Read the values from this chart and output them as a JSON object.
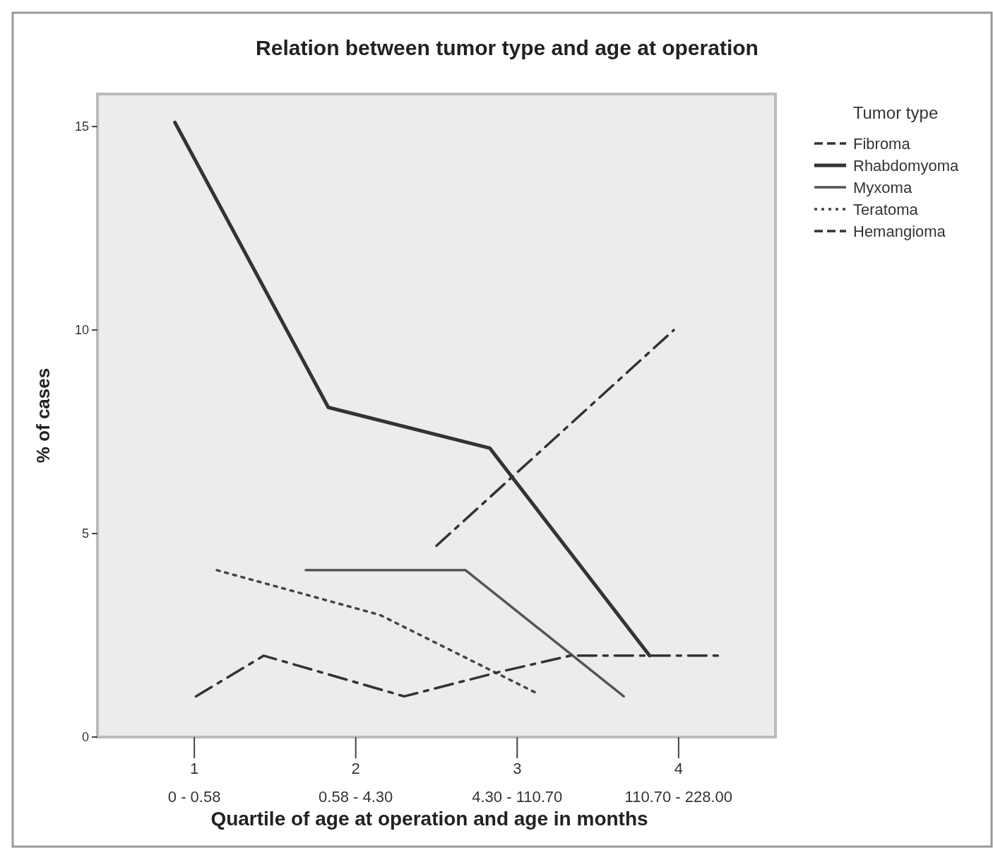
{
  "chart_data": {
    "type": "line",
    "title": "Relation between tumor type and age at operation",
    "xlabel": "Quartile of age at operation and age in months",
    "ylabel": "% of cases",
    "legend_title": "Tumor type",
    "legend": "right",
    "grid": false,
    "annotations": [
      "0 - 0.58",
      "0.58 - 4.30",
      "4.30 - 110.70",
      "110.70 - 228.00"
    ],
    "xlim": [
      0.4,
      4.6
    ],
    "xticks": [
      1,
      2,
      3,
      4
    ],
    "ylim": [
      0,
      15.8
    ],
    "yticks": [
      0,
      5,
      10,
      15
    ],
    "series": [
      {
        "name": "Fibroma",
        "color": "#333333",
        "line_style": "dashed",
        "x": [
          2.5,
          3.97
        ],
        "values": [
          4.7,
          10
        ]
      },
      {
        "name": "Rhabdomyoma",
        "color": "#333333",
        "line_style": "solid",
        "x": [
          0.88,
          1.83,
          2.83,
          3.82
        ],
        "values": [
          15.1,
          8.1,
          7.1,
          2
        ]
      },
      {
        "name": "Myxoma",
        "color": "#555555",
        "line_style": "solid",
        "x": [
          1.69,
          2.68,
          3.66
        ],
        "values": [
          4.1,
          4.1,
          1
        ]
      },
      {
        "name": "Teratoma",
        "color": "#444444",
        "line_style": "dotted",
        "x": [
          1.14,
          2.15,
          3.11
        ],
        "values": [
          4.1,
          3,
          1.1
        ]
      },
      {
        "name": "Hemangioma",
        "color": "#333333",
        "line_style": "dashed",
        "x": [
          1.01,
          1.43,
          2.3,
          2.89,
          3.33,
          4.25
        ],
        "values": [
          1,
          2,
          1,
          1.6,
          2,
          2
        ]
      }
    ]
  }
}
